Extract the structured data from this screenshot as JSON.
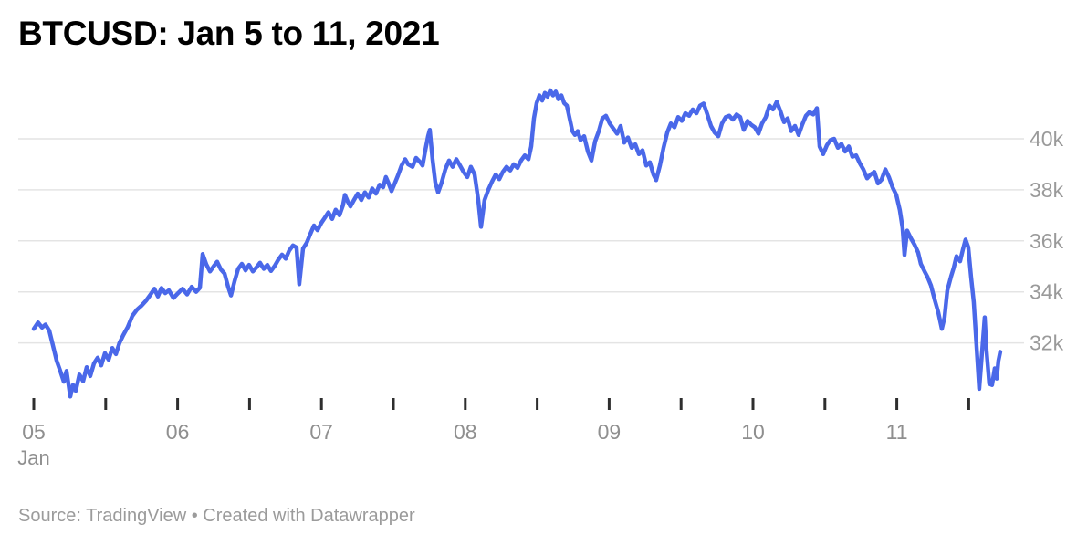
{
  "header": {
    "title": "BTCUSD: Jan 5 to 11, 2021"
  },
  "footer": {
    "text": "Source: TradingView • Created with Datawrapper"
  },
  "chart_data": {
    "type": "line",
    "title": "BTCUSD: Jan 5 to 11, 2021",
    "legend": "none",
    "grid": "horizontal",
    "x_axis": {
      "month_label": "Jan",
      "day_labels": [
        "05",
        "06",
        "07",
        "08",
        "09",
        "10",
        "11"
      ],
      "tick_interval_days": 0.5,
      "tick_count": 14,
      "range_days": [
        0,
        6.72
      ]
    },
    "y_axis": {
      "side": "right",
      "unit": "USD",
      "range": [
        29500,
        42300
      ],
      "ticks": [
        {
          "value": 40000,
          "label": "40k"
        },
        {
          "value": 38000,
          "label": "38k"
        },
        {
          "value": 36000,
          "label": "36k"
        },
        {
          "value": 34000,
          "label": "34k"
        },
        {
          "value": 32000,
          "label": "32k"
        }
      ]
    },
    "colors": {
      "line": "#4a68e9",
      "grid": "#e4e4e4",
      "axis_text": "#9a9a9a",
      "tick_mark": "#2e2e2e",
      "title": "#000000",
      "footer_text": "#9b9b9b",
      "background": "#ffffff"
    },
    "series": [
      {
        "name": "BTCUSD",
        "points": [
          [
            0.0,
            32550
          ],
          [
            0.03,
            32800
          ],
          [
            0.057,
            32600
          ],
          [
            0.082,
            32720
          ],
          [
            0.108,
            32480
          ],
          [
            0.133,
            31900
          ],
          [
            0.159,
            31300
          ],
          [
            0.184,
            30900
          ],
          [
            0.209,
            30480
          ],
          [
            0.228,
            30900
          ],
          [
            0.254,
            29900
          ],
          [
            0.273,
            30350
          ],
          [
            0.292,
            30120
          ],
          [
            0.317,
            30760
          ],
          [
            0.343,
            30500
          ],
          [
            0.368,
            31050
          ],
          [
            0.393,
            30700
          ],
          [
            0.419,
            31200
          ],
          [
            0.444,
            31420
          ],
          [
            0.469,
            31120
          ],
          [
            0.495,
            31600
          ],
          [
            0.52,
            31340
          ],
          [
            0.546,
            31800
          ],
          [
            0.571,
            31560
          ],
          [
            0.596,
            32000
          ],
          [
            0.622,
            32300
          ],
          [
            0.653,
            32620
          ],
          [
            0.685,
            33060
          ],
          [
            0.717,
            33300
          ],
          [
            0.749,
            33460
          ],
          [
            0.78,
            33650
          ],
          [
            0.812,
            33900
          ],
          [
            0.838,
            34120
          ],
          [
            0.863,
            33820
          ],
          [
            0.888,
            34150
          ],
          [
            0.914,
            33950
          ],
          [
            0.939,
            34060
          ],
          [
            0.971,
            33760
          ],
          [
            1.003,
            33950
          ],
          [
            1.034,
            34120
          ],
          [
            1.066,
            33900
          ],
          [
            1.098,
            34200
          ],
          [
            1.129,
            34000
          ],
          [
            1.155,
            34160
          ],
          [
            1.174,
            35480
          ],
          [
            1.199,
            35080
          ],
          [
            1.225,
            34800
          ],
          [
            1.25,
            35000
          ],
          [
            1.275,
            35180
          ],
          [
            1.301,
            34880
          ],
          [
            1.326,
            34720
          ],
          [
            1.351,
            34200
          ],
          [
            1.371,
            33860
          ],
          [
            1.396,
            34420
          ],
          [
            1.421,
            34900
          ],
          [
            1.447,
            35100
          ],
          [
            1.472,
            34840
          ],
          [
            1.497,
            35060
          ],
          [
            1.523,
            34800
          ],
          [
            1.548,
            34960
          ],
          [
            1.573,
            35140
          ],
          [
            1.599,
            34900
          ],
          [
            1.624,
            35060
          ],
          [
            1.649,
            34820
          ],
          [
            1.675,
            35020
          ],
          [
            1.7,
            35260
          ],
          [
            1.726,
            35460
          ],
          [
            1.751,
            35300
          ],
          [
            1.776,
            35620
          ],
          [
            1.802,
            35820
          ],
          [
            1.827,
            35740
          ],
          [
            1.846,
            34300
          ],
          [
            1.872,
            35700
          ],
          [
            1.897,
            35920
          ],
          [
            1.922,
            36260
          ],
          [
            1.948,
            36600
          ],
          [
            1.973,
            36420
          ],
          [
            1.999,
            36700
          ],
          [
            2.023,
            36900
          ],
          [
            2.048,
            37120
          ],
          [
            2.074,
            36860
          ],
          [
            2.099,
            37220
          ],
          [
            2.125,
            37000
          ],
          [
            2.15,
            37400
          ],
          [
            2.163,
            37800
          ],
          [
            2.182,
            37550
          ],
          [
            2.201,
            37350
          ],
          [
            2.226,
            37600
          ],
          [
            2.252,
            37850
          ],
          [
            2.277,
            37600
          ],
          [
            2.302,
            37900
          ],
          [
            2.328,
            37700
          ],
          [
            2.353,
            38050
          ],
          [
            2.379,
            37850
          ],
          [
            2.404,
            38200
          ],
          [
            2.429,
            38100
          ],
          [
            2.448,
            38500
          ],
          [
            2.467,
            38250
          ],
          [
            2.487,
            37950
          ],
          [
            2.506,
            38200
          ],
          [
            2.531,
            38550
          ],
          [
            2.557,
            38950
          ],
          [
            2.582,
            39200
          ],
          [
            2.602,
            39000
          ],
          [
            2.633,
            38900
          ],
          [
            2.658,
            39250
          ],
          [
            2.684,
            39100
          ],
          [
            2.703,
            38950
          ],
          [
            2.722,
            39550
          ],
          [
            2.741,
            40100
          ],
          [
            2.753,
            40350
          ],
          [
            2.772,
            39200
          ],
          [
            2.791,
            38300
          ],
          [
            2.811,
            37900
          ],
          [
            2.836,
            38300
          ],
          [
            2.861,
            38800
          ],
          [
            2.887,
            39150
          ],
          [
            2.912,
            38900
          ],
          [
            2.938,
            39200
          ],
          [
            2.963,
            38950
          ],
          [
            2.988,
            38700
          ],
          [
            3.014,
            38500
          ],
          [
            3.039,
            38900
          ],
          [
            3.065,
            38600
          ],
          [
            3.09,
            37600
          ],
          [
            3.109,
            36550
          ],
          [
            3.134,
            37600
          ],
          [
            3.16,
            38000
          ],
          [
            3.185,
            38320
          ],
          [
            3.211,
            38600
          ],
          [
            3.236,
            38420
          ],
          [
            3.261,
            38700
          ],
          [
            3.287,
            38900
          ],
          [
            3.312,
            38760
          ],
          [
            3.337,
            39000
          ],
          [
            3.363,
            38860
          ],
          [
            3.388,
            39150
          ],
          [
            3.414,
            39350
          ],
          [
            3.439,
            39200
          ],
          [
            3.458,
            39700
          ],
          [
            3.477,
            40800
          ],
          [
            3.496,
            41400
          ],
          [
            3.515,
            41700
          ],
          [
            3.534,
            41500
          ],
          [
            3.553,
            41800
          ],
          [
            3.572,
            41650
          ],
          [
            3.591,
            41900
          ],
          [
            3.61,
            41700
          ],
          [
            3.629,
            41850
          ],
          [
            3.648,
            41550
          ],
          [
            3.668,
            41700
          ],
          [
            3.687,
            41400
          ],
          [
            3.706,
            41300
          ],
          [
            3.725,
            40800
          ],
          [
            3.744,
            40300
          ],
          [
            3.763,
            40150
          ],
          [
            3.782,
            40300
          ],
          [
            3.801,
            39950
          ],
          [
            3.826,
            40100
          ],
          [
            3.852,
            39500
          ],
          [
            3.877,
            39150
          ],
          [
            3.902,
            39900
          ],
          [
            3.928,
            40300
          ],
          [
            3.953,
            40800
          ],
          [
            3.978,
            40900
          ],
          [
            4.004,
            40600
          ],
          [
            4.029,
            40400
          ],
          [
            4.055,
            40200
          ],
          [
            4.08,
            40500
          ],
          [
            4.105,
            39850
          ],
          [
            4.131,
            40050
          ],
          [
            4.156,
            39650
          ],
          [
            4.182,
            39780
          ],
          [
            4.207,
            39400
          ],
          [
            4.232,
            39550
          ],
          [
            4.258,
            38950
          ],
          [
            4.283,
            39080
          ],
          [
            4.308,
            38600
          ],
          [
            4.327,
            38380
          ],
          [
            4.353,
            38950
          ],
          [
            4.378,
            39650
          ],
          [
            4.404,
            40250
          ],
          [
            4.429,
            40600
          ],
          [
            4.454,
            40450
          ],
          [
            4.48,
            40850
          ],
          [
            4.505,
            40700
          ],
          [
            4.53,
            41000
          ],
          [
            4.556,
            40900
          ],
          [
            4.581,
            41150
          ],
          [
            4.607,
            41000
          ],
          [
            4.632,
            41300
          ],
          [
            4.657,
            41380
          ],
          [
            4.683,
            40950
          ],
          [
            4.708,
            40500
          ],
          [
            4.733,
            40250
          ],
          [
            4.759,
            40100
          ],
          [
            4.784,
            40600
          ],
          [
            4.81,
            40850
          ],
          [
            4.835,
            40900
          ],
          [
            4.86,
            40750
          ],
          [
            4.886,
            40950
          ],
          [
            4.911,
            40850
          ],
          [
            4.936,
            40350
          ],
          [
            4.962,
            40700
          ],
          [
            4.987,
            40550
          ],
          [
            5.013,
            40450
          ],
          [
            5.038,
            40200
          ],
          [
            5.063,
            40600
          ],
          [
            5.089,
            40850
          ],
          [
            5.114,
            41300
          ],
          [
            5.139,
            41150
          ],
          [
            5.165,
            41450
          ],
          [
            5.19,
            41100
          ],
          [
            5.216,
            40650
          ],
          [
            5.241,
            40800
          ],
          [
            5.266,
            40300
          ],
          [
            5.292,
            40500
          ],
          [
            5.317,
            40150
          ],
          [
            5.342,
            40550
          ],
          [
            5.368,
            40900
          ],
          [
            5.393,
            41050
          ],
          [
            5.419,
            40950
          ],
          [
            5.444,
            41200
          ],
          [
            5.463,
            39700
          ],
          [
            5.488,
            39400
          ],
          [
            5.514,
            39750
          ],
          [
            5.539,
            39950
          ],
          [
            5.564,
            40000
          ],
          [
            5.59,
            39650
          ],
          [
            5.615,
            39800
          ],
          [
            5.641,
            39500
          ],
          [
            5.666,
            39700
          ],
          [
            5.691,
            39300
          ],
          [
            5.717,
            39350
          ],
          [
            5.742,
            39050
          ],
          [
            5.767,
            38800
          ],
          [
            5.793,
            38450
          ],
          [
            5.818,
            38600
          ],
          [
            5.844,
            38700
          ],
          [
            5.869,
            38250
          ],
          [
            5.894,
            38400
          ],
          [
            5.92,
            38800
          ],
          [
            5.945,
            38500
          ],
          [
            5.97,
            38100
          ],
          [
            5.996,
            37800
          ],
          [
            6.021,
            37200
          ],
          [
            6.04,
            36500
          ],
          [
            6.053,
            35450
          ],
          [
            6.072,
            36400
          ],
          [
            6.098,
            36100
          ],
          [
            6.123,
            35850
          ],
          [
            6.148,
            35550
          ],
          [
            6.167,
            35100
          ],
          [
            6.193,
            34800
          ],
          [
            6.212,
            34600
          ],
          [
            6.237,
            34250
          ],
          [
            6.263,
            33700
          ],
          [
            6.288,
            33200
          ],
          [
            6.313,
            32550
          ],
          [
            6.332,
            33000
          ],
          [
            6.351,
            34050
          ],
          [
            6.377,
            34600
          ],
          [
            6.396,
            34950
          ],
          [
            6.415,
            35400
          ],
          [
            6.44,
            35200
          ],
          [
            6.459,
            35650
          ],
          [
            6.478,
            36050
          ],
          [
            6.497,
            35750
          ],
          [
            6.516,
            34600
          ],
          [
            6.535,
            33600
          ],
          [
            6.554,
            31900
          ],
          [
            6.573,
            30200
          ],
          [
            6.592,
            31600
          ],
          [
            6.611,
            33000
          ],
          [
            6.624,
            31700
          ],
          [
            6.643,
            30400
          ],
          [
            6.662,
            30350
          ],
          [
            6.681,
            31000
          ],
          [
            6.694,
            30600
          ],
          [
            6.706,
            31300
          ],
          [
            6.719,
            31650
          ]
        ]
      }
    ]
  }
}
